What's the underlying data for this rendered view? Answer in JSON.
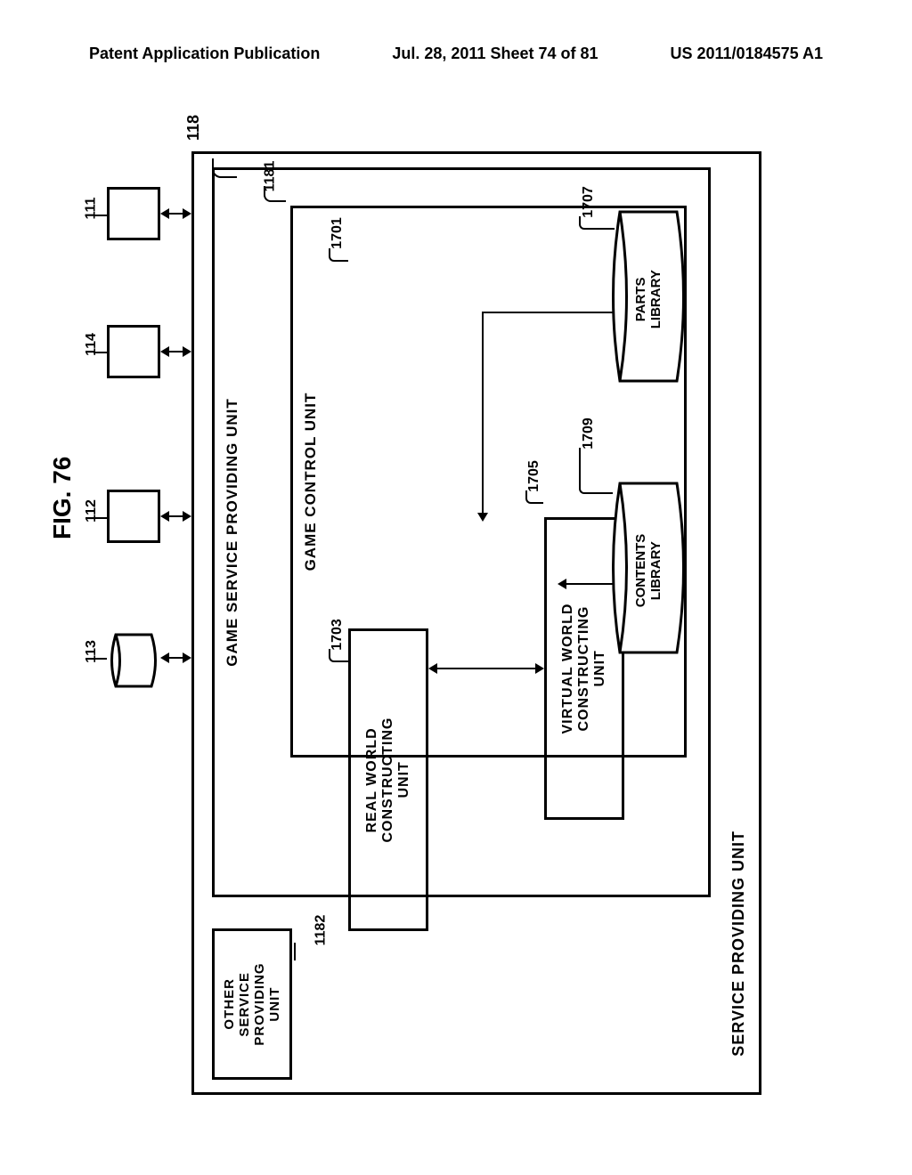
{
  "header": {
    "left": "Patent Application Publication",
    "center": "Jul. 28, 2011  Sheet 74 of 81",
    "right": "US 2011/0184575 A1"
  },
  "figure_label": "FIG. 76",
  "outer": {
    "label": "SERVICE PROVIDING UNIT",
    "ref": "118"
  },
  "game_service": {
    "label": "GAME SERVICE PROVIDING UNIT",
    "ref": "1181"
  },
  "game_control": {
    "label": "GAME CONTROL UNIT",
    "ref": "1701"
  },
  "real_world": {
    "label": "REAL WORLD\nCONSTRUCTING UNIT",
    "ref": "1703"
  },
  "virtual_world": {
    "label": "VIRTUAL WORLD\nCONSTRUCTING UNIT",
    "ref": "1705"
  },
  "other_service": {
    "label": "OTHER SERVICE\nPROVIDING UNIT",
    "ref": "1182"
  },
  "parts_library": {
    "label": "PARTS LIBRARY",
    "ref": "1707"
  },
  "contents_library": {
    "label": "CONTENTS\nLIBRARY",
    "ref": "1709"
  },
  "external_refs": {
    "box1": "111",
    "box2": "114",
    "box3": "112",
    "cyl": "113"
  },
  "colors": {
    "stroke": "#000000",
    "bg": "#ffffff"
  }
}
